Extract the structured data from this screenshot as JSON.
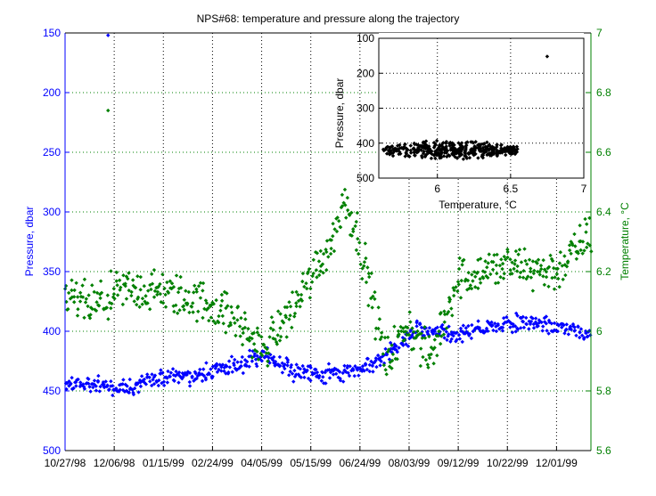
{
  "chart_data": [
    {
      "type": "scatter",
      "title": "NPS#68: temperature and pressure along the trajectory",
      "xlabel": "",
      "x_is_date": true,
      "x_tick_labels": [
        "10/27/98",
        "12/06/98",
        "01/15/99",
        "02/24/99",
        "04/05/99",
        "05/15/99",
        "06/24/99",
        "08/03/99",
        "09/12/99",
        "10/22/99",
        "12/01/99"
      ],
      "x_tick_dates": [
        "1998-10-27",
        "1998-12-06",
        "1999-01-15",
        "1999-02-24",
        "1999-04-05",
        "1999-05-15",
        "1999-06-24",
        "1999-08-03",
        "1999-09-12",
        "1999-10-22",
        "1999-12-01"
      ],
      "xlim": [
        "1998-10-27",
        "1999-12-29"
      ],
      "grid": true,
      "y_left": {
        "label": "Pressure, dbar",
        "ylim": [
          150,
          500
        ],
        "reversed": true,
        "ticks": [
          "150",
          "200",
          "250",
          "300",
          "350",
          "400",
          "450",
          "500"
        ],
        "color": "#0000ff"
      },
      "y_right": {
        "label": "Temperature, °C",
        "ylim": [
          5.6,
          7
        ],
        "ticks": [
          "5.6",
          "5.8",
          "6",
          "6.2",
          "6.4",
          "6.6",
          "6.8",
          "7"
        ],
        "color": "#008000"
      },
      "series": [
        {
          "name": "",
          "axis": "left",
          "color": "#0000ff",
          "marker": "diamond",
          "trend": {
            "x": [
              "1998-10-27",
              "1998-11-20",
              "1998-12-15",
              "1999-01-10",
              "1999-02-15",
              "1999-03-15",
              "1999-04-05",
              "1999-05-01",
              "1999-05-25",
              "1999-06-15",
              "1999-07-10",
              "1999-07-25",
              "1999-08-10",
              "1999-09-10",
              "1999-10-10",
              "1999-11-10",
              "1999-12-29"
            ],
            "y": [
              443,
              445,
              448,
              440,
              435,
              430,
              420,
              433,
              437,
              433,
              425,
              412,
              398,
              403,
              396,
              392,
              400
            ]
          },
          "outliers": [
            {
              "x": "1998-12-01",
              "y": 152
            }
          ]
        },
        {
          "name": "",
          "axis": "right",
          "color": "#008000",
          "marker": "diamond",
          "trend": {
            "x": [
              "1998-10-27",
              "1998-11-20",
              "1998-12-15",
              "1999-01-15",
              "1999-02-24",
              "1999-03-20",
              "1999-04-05",
              "1999-05-01",
              "1999-05-20",
              "1999-06-01",
              "1999-06-12",
              "1999-06-24",
              "1999-07-15",
              "1999-08-03",
              "1999-08-20",
              "1999-09-12",
              "1999-10-22",
              "1999-12-01",
              "1999-12-29"
            ],
            "y": [
              6.12,
              6.08,
              6.14,
              6.13,
              6.09,
              6.02,
              5.93,
              6.08,
              6.22,
              6.3,
              6.45,
              6.3,
              5.9,
              6.02,
              5.9,
              6.18,
              6.22,
              6.2,
              6.33
            ]
          },
          "outliers": [
            {
              "x": "1998-12-01",
              "y": 6.74
            }
          ]
        }
      ]
    },
    {
      "type": "scatter",
      "inset": true,
      "title": "",
      "xlabel": "Temperature, °C",
      "ylabel": "Pressure, dbar",
      "xlim": [
        5.6,
        7
      ],
      "ylim": [
        100,
        500
      ],
      "y_reversed": true,
      "x_ticks": [
        "6",
        "6.5",
        "7"
      ],
      "y_ticks": [
        "100",
        "200",
        "300",
        "400",
        "500"
      ],
      "grid": true,
      "series": [
        {
          "name": "",
          "color": "#000000",
          "marker": "diamond",
          "cluster": {
            "x_range": [
              5.62,
              6.55
            ],
            "y_center": 420,
            "y_spread": 30
          },
          "outliers": [
            {
              "x": 6.75,
              "y": 152
            }
          ]
        }
      ]
    }
  ]
}
